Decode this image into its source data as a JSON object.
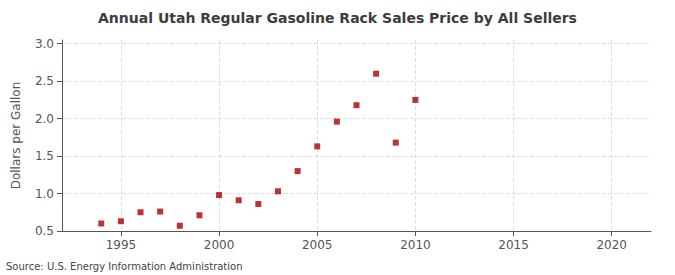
{
  "chart_data": {
    "type": "scatter",
    "title": "Annual Utah Regular Gasoline Rack Sales Price by All Sellers",
    "ylabel": "Dollars per Gallon",
    "annotations": [
      "Source: U.S. Energy Information Administration"
    ],
    "x": [
      1994,
      1995,
      1996,
      1997,
      1998,
      1999,
      2000,
      2001,
      2002,
      2003,
      2004,
      2005,
      2006,
      2007,
      2008,
      2009,
      2010
    ],
    "values": [
      0.6,
      0.63,
      0.75,
      0.76,
      0.57,
      0.71,
      0.98,
      0.91,
      0.86,
      1.03,
      1.3,
      1.63,
      1.96,
      2.18,
      2.6,
      1.68,
      2.25
    ],
    "color": "#aa0000",
    "marker": "square",
    "xlim": [
      1992,
      2022
    ],
    "xticks": [
      1995,
      2000,
      2005,
      2010,
      2015,
      2020
    ],
    "ylim": [
      0.5,
      3.05
    ],
    "yticks": [
      0.5,
      {
        "value": 1,
        "label": "1.0"
      },
      1.5,
      {
        "value": 2,
        "label": "2.0"
      },
      2.5,
      {
        "value": 3,
        "label": "3.0"
      }
    ],
    "grid": true
  }
}
